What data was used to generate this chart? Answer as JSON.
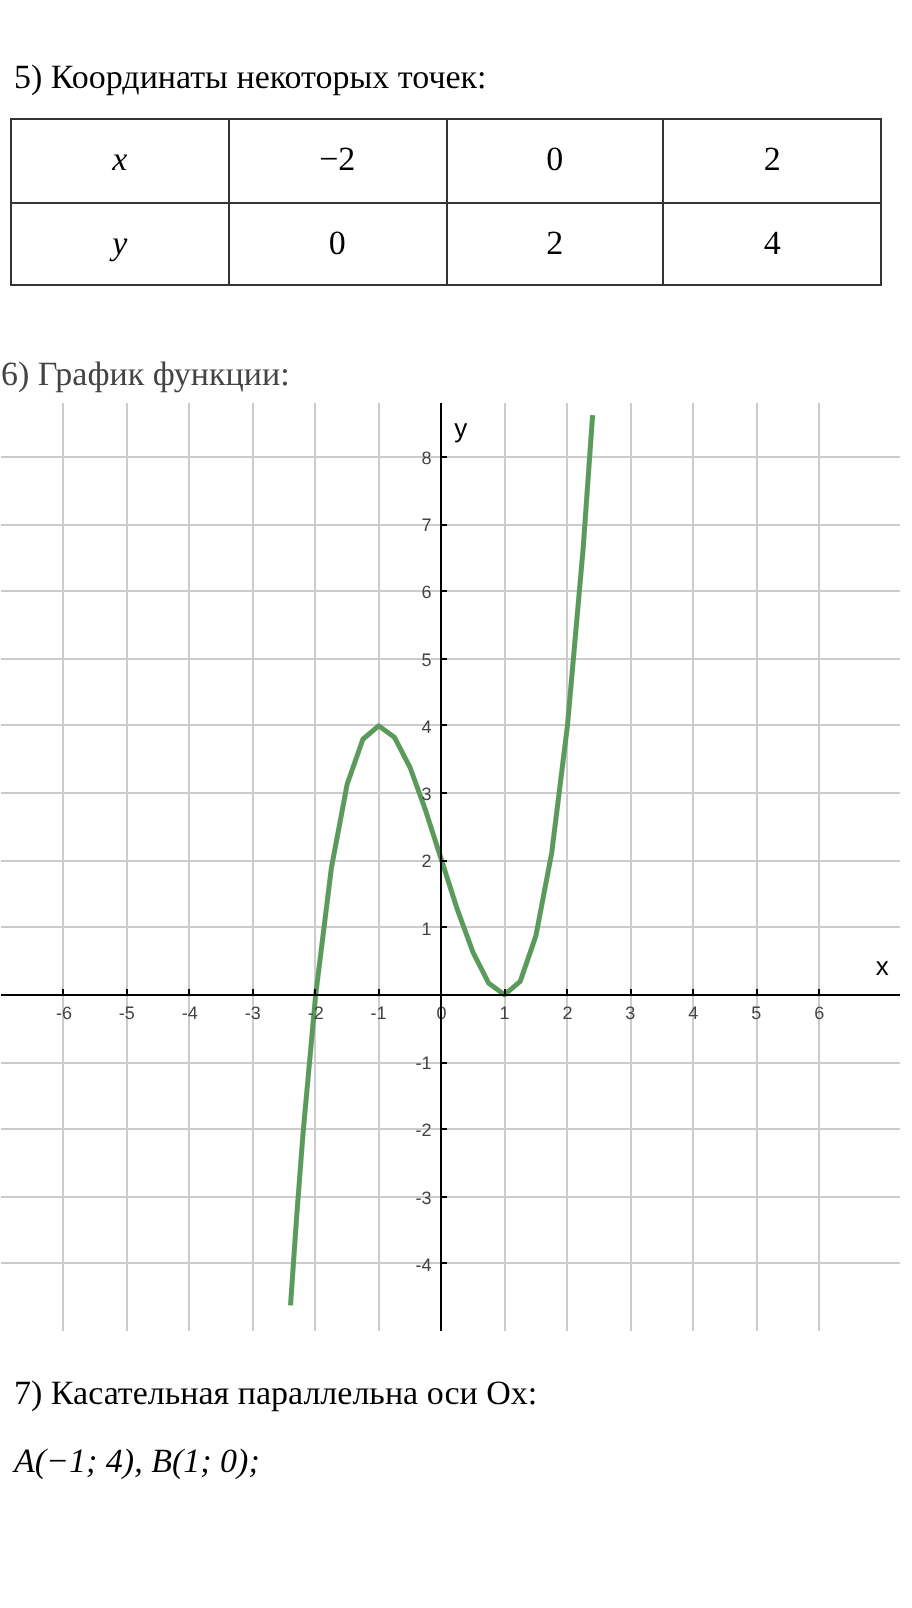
{
  "chart_data": {
    "type": "line",
    "title": "6) График функции:",
    "xlabel": "x",
    "ylabel": "y",
    "x": [
      -2.4,
      -2.3,
      -2.2,
      -2.0,
      -1.75,
      -1.5,
      -1.25,
      -1.0,
      -0.75,
      -0.5,
      -0.25,
      0,
      0.25,
      0.5,
      0.75,
      1.0,
      1.25,
      1.5,
      1.75,
      2.0,
      2.25,
      2.4
    ],
    "series": [
      {
        "color": "#5a9a5a",
        "values": [
          -4.62,
          -3.27,
          -2.05,
          0,
          1.89,
          3.13,
          3.8,
          4,
          3.83,
          3.38,
          2.73,
          2,
          1.27,
          0.63,
          0.17,
          0,
          0.2,
          0.88,
          2.11,
          4,
          6.64,
          8.62
        ]
      }
    ],
    "xlim": [
      -7,
      7.3
    ],
    "ylim": [
      -5,
      8.8
    ],
    "xticks": [
      -6,
      -5,
      -4,
      -3,
      -2,
      -1,
      0,
      1,
      2,
      3,
      4,
      5,
      6
    ],
    "yticks": [
      -4,
      -3,
      -2,
      -1,
      1,
      2,
      3,
      4,
      5,
      6,
      7,
      8
    ],
    "grid": true,
    "marker": "none",
    "line_style": "solid",
    "annotations": [
      "5) Координаты некоторых точек:",
      "x",
      "−2",
      "0",
      "2",
      "y",
      "0",
      "2",
      "4",
      "7) Касательная параллельна оси Ox:",
      "A(−1; 4),  B(1; 0);"
    ]
  }
}
